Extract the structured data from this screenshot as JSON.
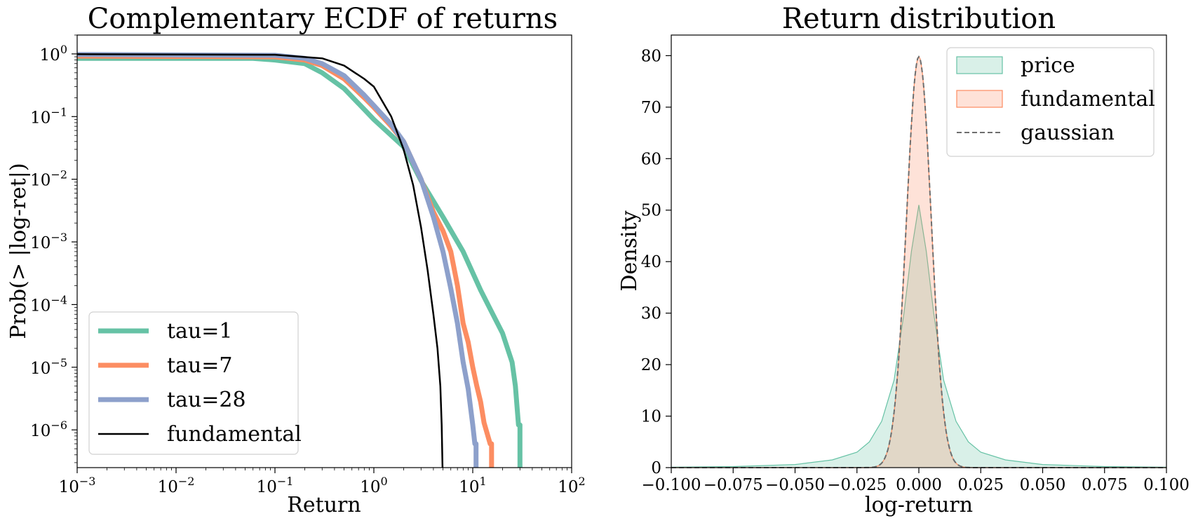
{
  "chart_data": [
    {
      "type": "line",
      "title": "Complementary ECDF of returns",
      "xlabel": "Return",
      "ylabel": "Prob(> |log-ret|)",
      "xscale": "log",
      "yscale": "log",
      "xlim": [
        0.001,
        100
      ],
      "ylim": [
        2.5e-07,
        2.0
      ],
      "x_ticks": [
        {
          "base": "10",
          "exp": "−3",
          "value": 0.001
        },
        {
          "base": "10",
          "exp": "−2",
          "value": 0.01
        },
        {
          "base": "10",
          "exp": "−1",
          "value": 0.1
        },
        {
          "base": "10",
          "exp": "0",
          "value": 1
        },
        {
          "base": "10",
          "exp": "1",
          "value": 10
        },
        {
          "base": "10",
          "exp": "2",
          "value": 100
        }
      ],
      "y_ticks": [
        {
          "base": "10",
          "exp": "0",
          "value": 1
        },
        {
          "base": "10",
          "exp": "−1",
          "value": 0.1
        },
        {
          "base": "10",
          "exp": "−2",
          "value": 0.01
        },
        {
          "base": "10",
          "exp": "−3",
          "value": 0.001
        },
        {
          "base": "10",
          "exp": "−4",
          "value": 0.0001
        },
        {
          "base": "10",
          "exp": "−5",
          "value": 1e-05
        },
        {
          "base": "10",
          "exp": "−6",
          "value": 1e-06
        }
      ],
      "legend_position": "lower-left",
      "series": [
        {
          "name": "tau=1",
          "color": "#66c2a5",
          "width": 7,
          "points": [
            [
              0.001,
              0.85
            ],
            [
              0.06,
              0.85
            ],
            [
              0.1,
              0.8
            ],
            [
              0.2,
              0.7
            ],
            [
              0.3,
              0.5
            ],
            [
              0.5,
              0.28
            ],
            [
              0.8,
              0.13
            ],
            [
              1.0,
              0.09
            ],
            [
              1.5,
              0.05
            ],
            [
              2.0,
              0.033
            ],
            [
              3.0,
              0.0095
            ],
            [
              5.0,
              0.0025
            ],
            [
              8.0,
              0.0007
            ],
            [
              12.0,
              0.00017
            ],
            [
              15.0,
              8.5e-05
            ],
            [
              20.0,
              3.5e-05
            ],
            [
              25.0,
              1.2e-05
            ],
            [
              27.0,
              5e-06
            ],
            [
              29.0,
              1.2e-06
            ],
            [
              30.0,
              1.2e-06
            ],
            [
              30.0,
              2.5e-07
            ]
          ]
        },
        {
          "name": "tau=7",
          "color": "#fc8d62",
          "width": 7,
          "points": [
            [
              0.001,
              0.92
            ],
            [
              0.1,
              0.9
            ],
            [
              0.2,
              0.8
            ],
            [
              0.3,
              0.65
            ],
            [
              0.5,
              0.4
            ],
            [
              0.8,
              0.2
            ],
            [
              1.0,
              0.14
            ],
            [
              1.5,
              0.07
            ],
            [
              2.0,
              0.04
            ],
            [
              3.0,
              0.01
            ],
            [
              4.0,
              0.003
            ],
            [
              5.0,
              0.0015
            ],
            [
              6.0,
              0.0007
            ],
            [
              7.0,
              0.0002
            ],
            [
              8.0,
              5e-05
            ],
            [
              9.0,
              2.5e-05
            ],
            [
              10.0,
              1e-05
            ],
            [
              11.0,
              5e-06
            ],
            [
              12.0,
              2.8e-06
            ],
            [
              13.0,
              1.3e-06
            ],
            [
              15.0,
              6e-07
            ],
            [
              15.5,
              6e-07
            ],
            [
              15.5,
              2.5e-07
            ]
          ]
        },
        {
          "name": "tau=28",
          "color": "#8da0cb",
          "width": 7,
          "points": [
            [
              0.001,
              0.98
            ],
            [
              0.1,
              0.95
            ],
            [
              0.2,
              0.85
            ],
            [
              0.3,
              0.7
            ],
            [
              0.5,
              0.45
            ],
            [
              0.8,
              0.22
            ],
            [
              1.0,
              0.15
            ],
            [
              1.5,
              0.075
            ],
            [
              2.0,
              0.04
            ],
            [
              3.0,
              0.01
            ],
            [
              4.0,
              0.0025
            ],
            [
              5.0,
              0.0007
            ],
            [
              6.0,
              0.00018
            ],
            [
              7.0,
              5e-05
            ],
            [
              8.0,
              1.2e-05
            ],
            [
              9.0,
              4.5e-06
            ],
            [
              10.0,
              1.2e-06
            ],
            [
              10.5,
              6e-07
            ],
            [
              10.8,
              6e-07
            ],
            [
              10.8,
              2.5e-07
            ]
          ]
        },
        {
          "name": "fundamental",
          "color": "#000000",
          "width": 2.5,
          "points": [
            [
              0.001,
              0.99
            ],
            [
              0.1,
              0.97
            ],
            [
              0.3,
              0.85
            ],
            [
              0.5,
              0.65
            ],
            [
              0.8,
              0.4
            ],
            [
              1.0,
              0.3
            ],
            [
              1.5,
              0.1
            ],
            [
              2.0,
              0.03
            ],
            [
              2.5,
              0.008
            ],
            [
              3.0,
              0.0017
            ],
            [
              3.5,
              0.00035
            ],
            [
              4.0,
              7e-05
            ],
            [
              4.4,
              2e-05
            ],
            [
              4.7,
              5e-06
            ],
            [
              4.85,
              1.2e-06
            ],
            [
              4.95,
              2.5e-07
            ]
          ]
        }
      ]
    },
    {
      "type": "area",
      "title": "Return distribution",
      "xlabel": "log-return",
      "ylabel": "Density",
      "xlim": [
        -0.1,
        0.1
      ],
      "ylim": [
        0,
        84
      ],
      "x_tick_labels": [
        "−0.100",
        "−0.075",
        "−0.050",
        "−0.025",
        "0.000",
        "0.025",
        "0.050",
        "0.075",
        "0.100"
      ],
      "x_tick_values": [
        -0.1,
        -0.075,
        -0.05,
        -0.025,
        0,
        0.025,
        0.05,
        0.075,
        0.1
      ],
      "y_tick_labels": [
        "0",
        "10",
        "20",
        "30",
        "40",
        "50",
        "60",
        "70",
        "80"
      ],
      "y_tick_values": [
        0,
        10,
        20,
        30,
        40,
        50,
        60,
        70,
        80
      ],
      "legend_position": "top-right",
      "series": [
        {
          "name": "price",
          "kind": "fill",
          "fill": "#66c2a5",
          "stroke": "#66c2a5",
          "points": [
            [
              -0.1,
              0.1
            ],
            [
              -0.075,
              0.2
            ],
            [
              -0.05,
              0.6
            ],
            [
              -0.035,
              1.5
            ],
            [
              -0.025,
              3
            ],
            [
              -0.02,
              5
            ],
            [
              -0.015,
              9
            ],
            [
              -0.01,
              17
            ],
            [
              -0.006,
              30
            ],
            [
              -0.003,
              42
            ],
            [
              0,
              51
            ],
            [
              0.003,
              42
            ],
            [
              0.006,
              30
            ],
            [
              0.01,
              17
            ],
            [
              0.015,
              9
            ],
            [
              0.02,
              5
            ],
            [
              0.025,
              3
            ],
            [
              0.035,
              1.5
            ],
            [
              0.05,
              0.6
            ],
            [
              0.075,
              0.2
            ],
            [
              0.1,
              0.1
            ]
          ]
        },
        {
          "name": "fundamental",
          "kind": "fill",
          "fill": "#fc8d62",
          "stroke": "#fc8d62",
          "mu": 0.0,
          "sigma": 0.005,
          "peak": 79.8
        },
        {
          "name": "gaussian",
          "kind": "dashed",
          "stroke": "#6e6e6e",
          "mu": 0.0,
          "sigma": 0.005,
          "peak": 79.8
        }
      ]
    }
  ]
}
